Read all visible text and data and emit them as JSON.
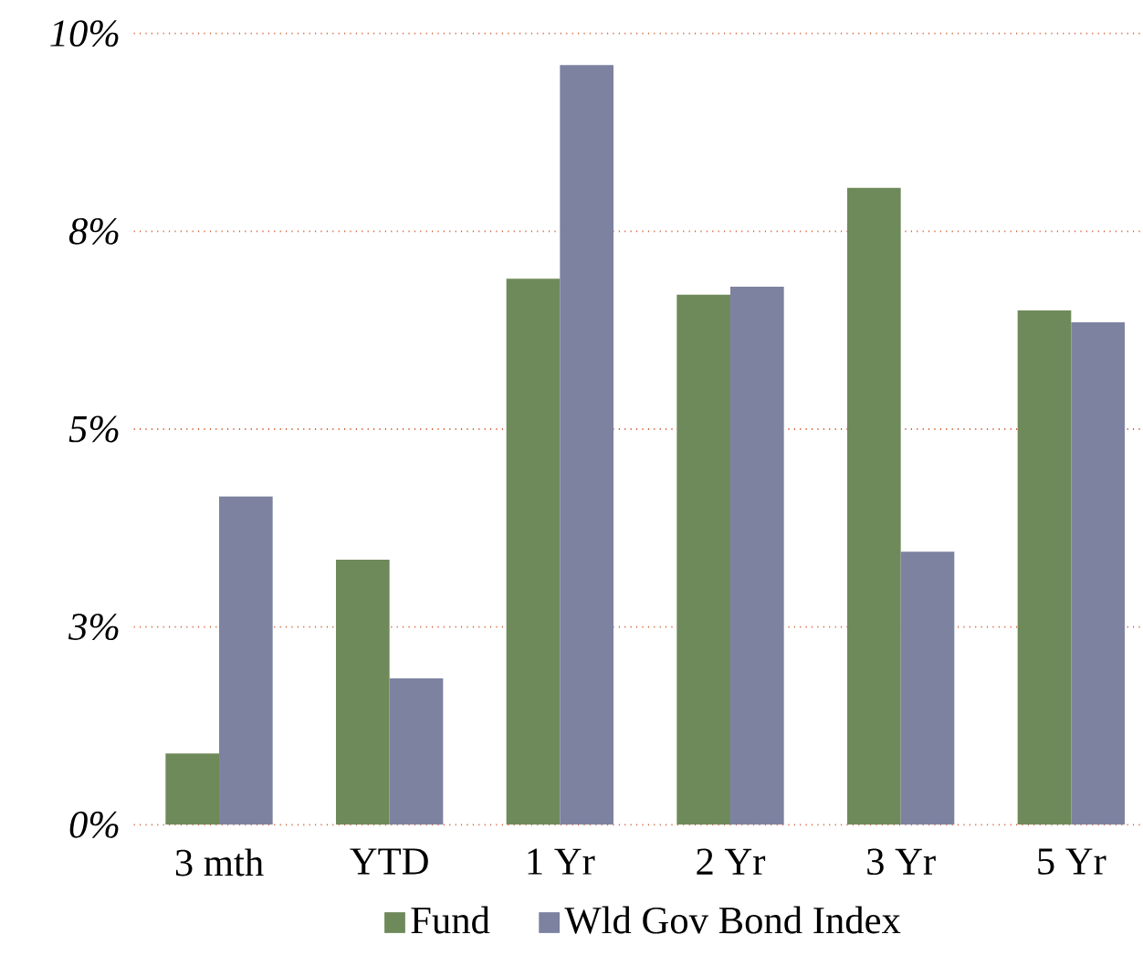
{
  "chart_data": {
    "type": "bar",
    "categories": [
      "3 mth",
      "YTD",
      "1 Yr",
      "2 Yr",
      "3 Yr",
      "5 Yr"
    ],
    "series": [
      {
        "name": "Fund",
        "color": "#6f8a5a",
        "values": [
          0.9,
          3.35,
          6.9,
          6.7,
          8.05,
          6.5
        ]
      },
      {
        "name": "Wld Gov Bond Index",
        "color": "#7d82a0",
        "values": [
          4.15,
          1.85,
          9.6,
          6.8,
          3.45,
          6.35
        ]
      }
    ],
    "ylim": [
      0,
      10
    ],
    "yticks": [
      {
        "value": 0,
        "label": "0%"
      },
      {
        "value": 2.5,
        "label": "3%"
      },
      {
        "value": 5,
        "label": "5%"
      },
      {
        "value": 7.5,
        "label": "8%"
      },
      {
        "value": 10,
        "label": "10%"
      }
    ],
    "grid": "y",
    "legend": "bottom"
  }
}
